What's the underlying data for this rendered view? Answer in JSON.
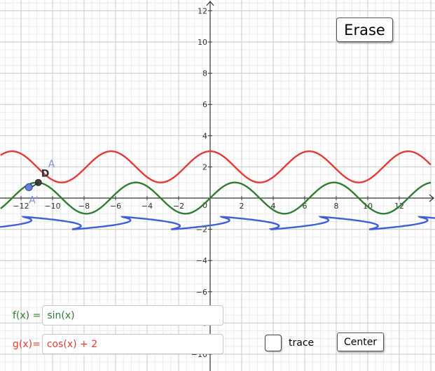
{
  "chart_data": {
    "type": "line",
    "x_ticks": [
      -12,
      -10,
      -8,
      -6,
      -4,
      -2,
      0,
      2,
      4,
      6,
      8,
      10,
      12
    ],
    "y_ticks": [
      -10,
      -8,
      -6,
      -4,
      -2,
      2,
      4,
      6,
      8,
      10,
      12
    ],
    "xlim": [
      -13.3,
      14
    ],
    "ylim": [
      -10.9,
      12.8
    ],
    "grid": true,
    "series": [
      {
        "name": "f(x)",
        "expression": "sin(x)",
        "color": "#2e7d32"
      },
      {
        "name": "g(x)",
        "expression": "cos(x) + 2",
        "color": "#e53935"
      },
      {
        "name": "trace",
        "color": "#3f5fd6"
      }
    ],
    "points": [
      {
        "label": "A",
        "x": -10.9,
        "y": 1.7,
        "color": "#7d8fe0"
      },
      {
        "label": "D",
        "x": -10.9,
        "y": 1.0,
        "color": "#444444"
      },
      {
        "label": "A'",
        "x": -11.5,
        "y": 0.7,
        "color": "#7d8fe0"
      }
    ]
  },
  "buttons": {
    "erase": "Erase",
    "center": "Center"
  },
  "inputs": {
    "f_label": "f(x) =",
    "f_value": "sin(x)",
    "f_color": "#2e7d32",
    "g_label": "g(x)=",
    "g_value": "cos(x) + 2",
    "g_color": "#e53935"
  },
  "trace": {
    "label": "trace",
    "checked": false
  }
}
